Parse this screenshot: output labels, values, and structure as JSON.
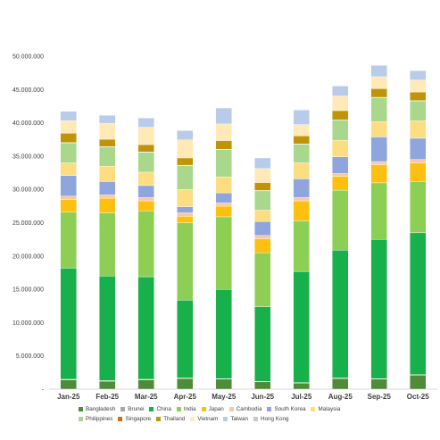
{
  "chart_data": {
    "type": "bar",
    "stacked": true,
    "categories": [
      "Jan-25",
      "Feb-25",
      "Mar-25",
      "Apr-25",
      "May-25",
      "Jun-25",
      "Jul-25",
      "Aug-25",
      "Sep-25",
      "Oct-25"
    ],
    "ylim": [
      0,
      50000000
    ],
    "y_ticks": [
      "-",
      "5.000.000",
      "10.000.000",
      "15.000.000",
      "20.000.000",
      "25.000.000",
      "30.000.000",
      "35.000.000",
      "40.000.000",
      "45.000.000",
      "50.000.000"
    ],
    "legend_position": "bottom",
    "grid": false,
    "series": [
      {
        "name": "Bangladesh",
        "color": "#4e8c3a",
        "values": [
          1400000,
          1200000,
          1400000,
          1600000,
          1500000,
          1100000,
          900000,
          1600000,
          1500000,
          2100000
        ]
      },
      {
        "name": "Brunei",
        "color": "#a8a8a8",
        "values": [
          80000,
          80000,
          80000,
          80000,
          80000,
          80000,
          80000,
          80000,
          80000,
          80000
        ]
      },
      {
        "name": "China",
        "color": "#17b04a",
        "values": [
          16700000,
          15700000,
          15400000,
          11700000,
          13400000,
          11200000,
          16700000,
          19200000,
          20900000,
          21300000
        ]
      },
      {
        "name": "India",
        "color": "#8ccf54",
        "values": [
          8400000,
          9500000,
          9900000,
          11600000,
          10900000,
          8100000,
          7600000,
          9000000,
          8500000,
          7700000
        ]
      },
      {
        "name": "Japan",
        "color": "#fdbf10",
        "values": [
          1900000,
          2200000,
          1500000,
          1000000,
          1600000,
          2100000,
          3000000,
          2100000,
          2700000,
          2800000
        ]
      },
      {
        "name": "Cambodia",
        "color": "#f8c7a6",
        "values": [
          500000,
          500000,
          500000,
          500000,
          500000,
          500000,
          500000,
          400000,
          500000,
          500000
        ]
      },
      {
        "name": "South Korea",
        "color": "#8ea6dd",
        "values": [
          3100000,
          2000000,
          1800000,
          900000,
          1500000,
          2100000,
          2800000,
          2500000,
          3700000,
          3200000
        ]
      },
      {
        "name": "Malaysia",
        "color": "#fddd82",
        "values": [
          1900000,
          2300000,
          2000000,
          2600000,
          2400000,
          1700000,
          2400000,
          2500000,
          2300000,
          2600000
        ]
      },
      {
        "name": "Philippines",
        "color": "#a9d88c",
        "values": [
          3000000,
          2900000,
          3000000,
          3600000,
          4100000,
          2900000,
          2800000,
          3000000,
          3600000,
          3000000
        ]
      },
      {
        "name": "Singapore",
        "color": "#cf6e15",
        "values": [
          50000,
          50000,
          50000,
          50000,
          50000,
          50000,
          50000,
          50000,
          50000,
          50000
        ]
      },
      {
        "name": "Thailand",
        "color": "#c09409",
        "values": [
          1400000,
          1100000,
          1100000,
          1100000,
          1300000,
          1200000,
          1200000,
          1400000,
          1300000,
          1300000
        ]
      },
      {
        "name": "Vietnam",
        "color": "#ffe9b6",
        "values": [
          1900000,
          2400000,
          2600000,
          2700000,
          2500000,
          2100000,
          1700000,
          2200000,
          1800000,
          1800000
        ]
      },
      {
        "name": "Taiwan",
        "color": "#b8cbe9",
        "values": [
          1400000,
          1200000,
          1400000,
          1400000,
          2400000,
          1600000,
          2200000,
          1500000,
          1700000,
          1400000
        ]
      },
      {
        "name": "Hong Kong",
        "color": "#c8c8c8",
        "values": [
          50000,
          50000,
          50000,
          50000,
          50000,
          50000,
          50000,
          50000,
          50000,
          50000
        ]
      }
    ]
  }
}
